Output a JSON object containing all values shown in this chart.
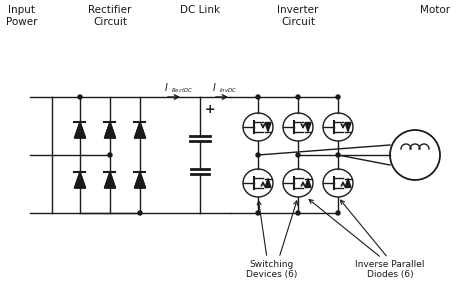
{
  "bg_color": "#ffffff",
  "line_color": "#1a1a1a",
  "figsize": [
    4.74,
    2.95
  ],
  "dpi": 100,
  "labels": {
    "input_power": "Input\nPower",
    "rectifier": "Rectifier\nCircuit",
    "dc_link": "DC Link",
    "inverter": "Inverter\nCircuit",
    "motor": "Motor",
    "plus": "+",
    "i_rect": "I",
    "i_rect_sub": "RectDC",
    "i_inv": "I",
    "i_inv_sub": "InvDC",
    "switching": "Switching\nDevices (6)",
    "inverse": "Inverse Parallel\nDiodes (6)"
  }
}
